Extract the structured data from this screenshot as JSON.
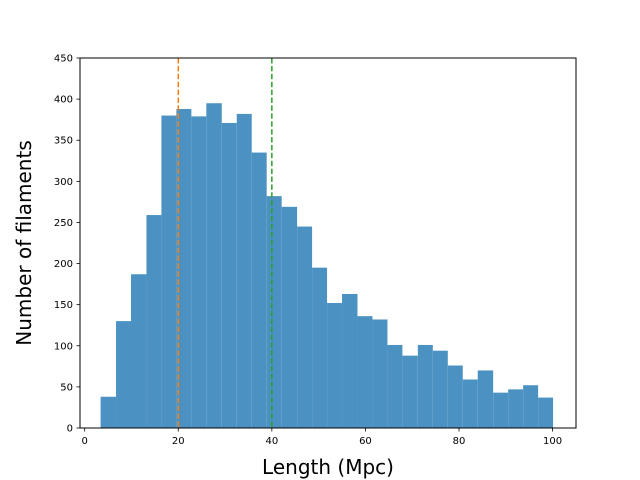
{
  "chart_data": {
    "type": "bar",
    "title": "",
    "xlabel": "Length (Mpc)",
    "ylabel": "Number of filaments",
    "xlim": [
      -1,
      105
    ],
    "ylim": [
      0,
      450
    ],
    "xticks": [
      0,
      20,
      40,
      60,
      80,
      100
    ],
    "yticks": [
      0,
      50,
      100,
      150,
      200,
      250,
      300,
      350,
      400,
      450
    ],
    "grid": false,
    "bar_color": "#4b92c3",
    "bins": [
      {
        "x0": 3.4,
        "x1": 6.7,
        "value": 38
      },
      {
        "x0": 6.7,
        "x1": 9.9,
        "value": 130
      },
      {
        "x0": 9.9,
        "x1": 13.2,
        "value": 187
      },
      {
        "x0": 13.2,
        "x1": 16.4,
        "value": 259
      },
      {
        "x0": 16.4,
        "x1": 19.6,
        "value": 380
      },
      {
        "x0": 19.6,
        "x1": 22.8,
        "value": 388
      },
      {
        "x0": 22.8,
        "x1": 26.0,
        "value": 379
      },
      {
        "x0": 26.0,
        "x1": 29.3,
        "value": 395
      },
      {
        "x0": 29.3,
        "x1": 32.5,
        "value": 371
      },
      {
        "x0": 32.5,
        "x1": 35.7,
        "value": 382
      },
      {
        "x0": 35.7,
        "x1": 38.9,
        "value": 335
      },
      {
        "x0": 38.9,
        "x1": 42.1,
        "value": 282
      },
      {
        "x0": 42.1,
        "x1": 45.4,
        "value": 269
      },
      {
        "x0": 45.4,
        "x1": 48.6,
        "value": 245
      },
      {
        "x0": 48.6,
        "x1": 51.8,
        "value": 195
      },
      {
        "x0": 51.8,
        "x1": 55.0,
        "value": 152
      },
      {
        "x0": 55.0,
        "x1": 58.3,
        "value": 163
      },
      {
        "x0": 58.3,
        "x1": 61.5,
        "value": 136
      },
      {
        "x0": 61.5,
        "x1": 64.7,
        "value": 132
      },
      {
        "x0": 64.7,
        "x1": 67.9,
        "value": 101
      },
      {
        "x0": 67.9,
        "x1": 71.2,
        "value": 88
      },
      {
        "x0": 71.2,
        "x1": 74.4,
        "value": 101
      },
      {
        "x0": 74.4,
        "x1": 77.6,
        "value": 94
      },
      {
        "x0": 77.6,
        "x1": 80.8,
        "value": 76
      },
      {
        "x0": 80.8,
        "x1": 84.0,
        "value": 59
      },
      {
        "x0": 84.0,
        "x1": 87.3,
        "value": 70
      },
      {
        "x0": 87.3,
        "x1": 90.5,
        "value": 43
      },
      {
        "x0": 90.5,
        "x1": 93.7,
        "value": 47
      },
      {
        "x0": 93.7,
        "x1": 96.9,
        "value": 52
      },
      {
        "x0": 96.9,
        "x1": 100.1,
        "value": 37
      }
    ],
    "vlines": [
      {
        "x": 20,
        "color": "#ff7f0e",
        "style": "dashed"
      },
      {
        "x": 40,
        "color": "#2ca02c",
        "style": "dashed"
      }
    ]
  }
}
